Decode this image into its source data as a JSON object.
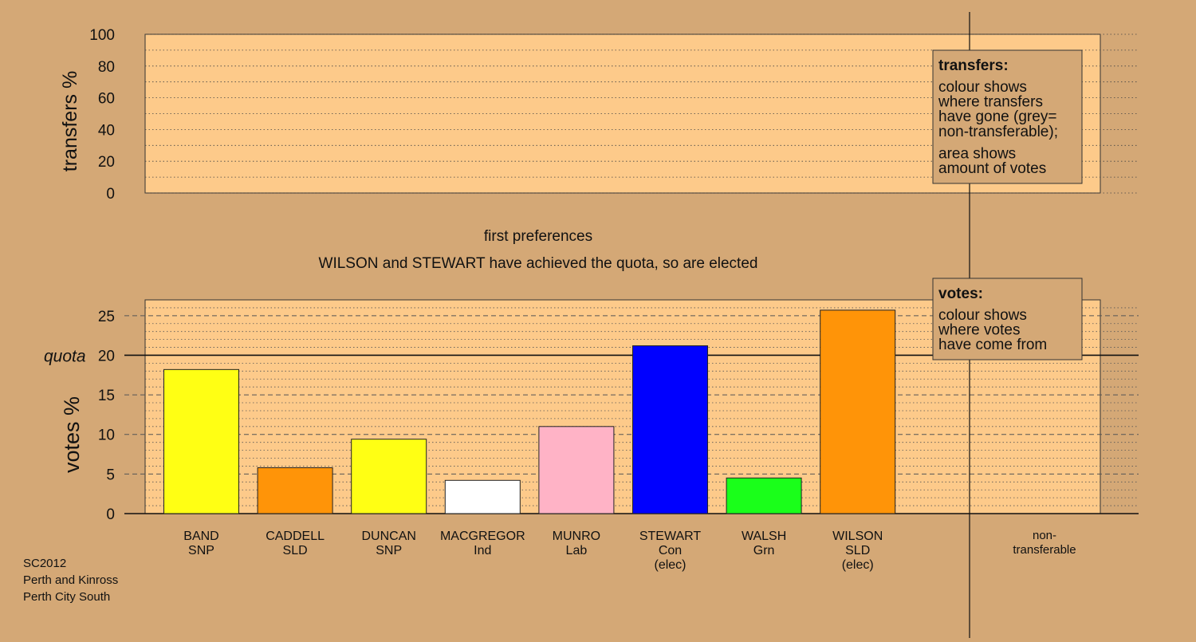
{
  "colors": {
    "background": "#d4a876",
    "plot_area": "#fdca8a",
    "legend_box": "#d4a876"
  },
  "transfers_panel": {
    "ylabel": "transfers %",
    "yticks": [
      "0",
      "20",
      "40",
      "60",
      "80",
      "100"
    ],
    "legend": {
      "title": "transfers:",
      "lines": [
        "colour shows",
        "where transfers",
        "have gone (grey=",
        "non-transferable);"
      ],
      "lines2": [
        "area shows",
        "amount of votes"
      ]
    }
  },
  "stage_title": "first preferences",
  "stage_subtitle": "WILSON and STEWART have achieved the quota, so are elected",
  "votes_panel": {
    "ylabel": "votes %",
    "yticks": [
      "0",
      "5",
      "10",
      "15",
      "20",
      "25"
    ],
    "quota_label": "quota",
    "legend": {
      "title": "votes:",
      "lines": [
        "colour shows",
        "where votes",
        "have come from"
      ]
    }
  },
  "nontransferable_label": [
    "non-",
    "transferable"
  ],
  "footer": [
    "SC2012",
    "Perth and Kinross",
    "Perth City South"
  ],
  "chart_data": [
    {
      "type": "bar",
      "title": "",
      "ylabel": "transfers %",
      "ylim": [
        0,
        100
      ],
      "categories": [],
      "values": []
    },
    {
      "type": "bar",
      "title": "first preferences",
      "subtitle": "WILSON and STEWART have achieved the quota, so are elected",
      "ylabel": "votes %",
      "ylim": [
        0,
        27
      ],
      "quota": 20,
      "grid": true,
      "categories": [
        [
          "BAND",
          "SNP"
        ],
        [
          "CADDELL",
          "SLD"
        ],
        [
          "DUNCAN",
          "SNP"
        ],
        [
          "MACGREGOR",
          "Ind"
        ],
        [
          "MUNRO",
          "Lab"
        ],
        [
          "STEWART",
          "Con",
          "(elec)"
        ],
        [
          "WALSH",
          "Grn"
        ],
        [
          "WILSON",
          "SLD",
          "(elec)"
        ]
      ],
      "values": [
        18.2,
        5.8,
        9.4,
        4.2,
        11.0,
        21.2,
        4.5,
        25.7
      ],
      "colors": [
        "#ffff14",
        "#ff9408",
        "#ffff14",
        "#ffffff",
        "#ffb3c6",
        "#0000ff",
        "#1aff1a",
        "#ff9408"
      ]
    }
  ]
}
